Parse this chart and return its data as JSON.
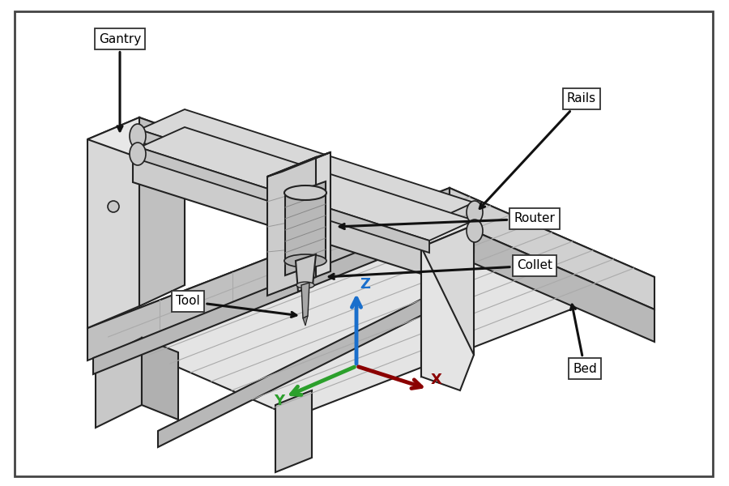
{
  "background_color": "#ffffff",
  "border_color": "#444444",
  "line_color": "#222222",
  "line_width": 1.5,
  "labels": [
    "Gantry",
    "Rails",
    "Router",
    "Collet",
    "Tool",
    "Bed"
  ],
  "axis_colors": {
    "Z": "#1a6fcc",
    "Y": "#2ca02c",
    "X": "#8b0000"
  }
}
